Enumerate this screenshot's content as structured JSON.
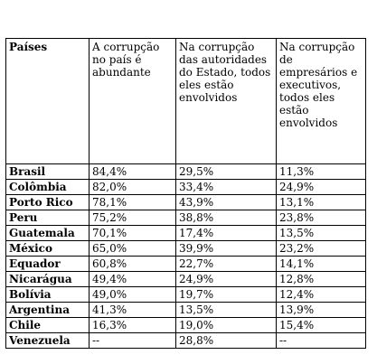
{
  "table": {
    "headers": [
      "Países",
      "A corrupção no país é abundante",
      "Na corrupção das autoridades do Estado, todos eles estão envolvidos",
      "Na corrupção de empresários e executivos, todos eles estão envolvidos"
    ],
    "rows": [
      [
        "Brasil",
        "84,4%",
        "29,5%",
        "11,3%"
      ],
      [
        "Colômbia",
        "82,0%",
        "33,4%",
        "24,9%"
      ],
      [
        "Porto Rico",
        "78,1%",
        "43,9%",
        "13,1%"
      ],
      [
        "Peru",
        "75,2%",
        "38,8%",
        "23,8%"
      ],
      [
        "Guatemala",
        "70,1%",
        "17,4%",
        "13,5%"
      ],
      [
        "México",
        "65,0%",
        "39,9%",
        "23,2%"
      ],
      [
        "Equador",
        "60,8%",
        "22,7%",
        "14,1%"
      ],
      [
        "Nicarágua",
        "49,4%",
        "24,9%",
        "12,8%"
      ],
      [
        "Bolívia",
        "49,0%",
        "19,7%",
        "12,4%"
      ],
      [
        "Argentina",
        "41,3%",
        "13,5%",
        "13,9%"
      ],
      [
        "Chile",
        "16,3%",
        "19,0%",
        "15,4%"
      ],
      [
        "Venezuela",
        "--",
        "28,8%",
        "--"
      ]
    ]
  }
}
